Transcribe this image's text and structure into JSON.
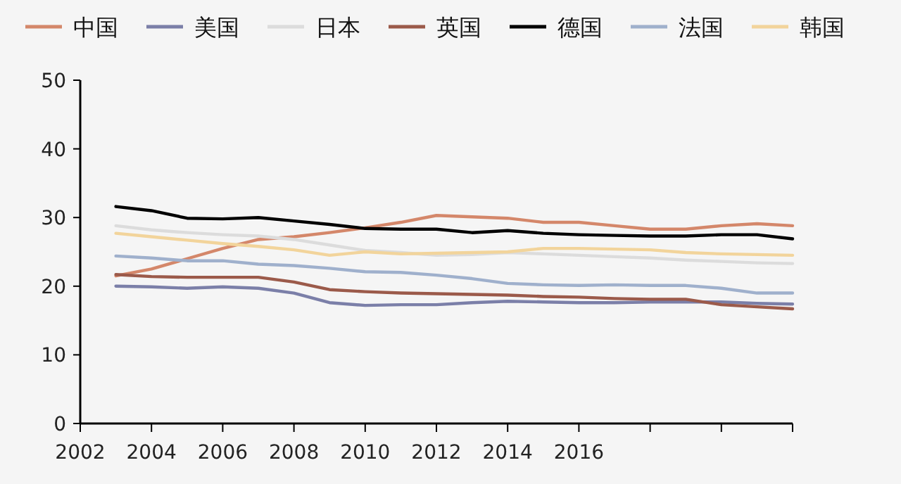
{
  "chart_data": {
    "type": "line",
    "legend": "top",
    "grid": false,
    "marker": "none",
    "line_style": "solid",
    "x": [
      2003,
      2004,
      2005,
      2006,
      2007,
      2008,
      2009,
      2010,
      2011,
      2012,
      2013,
      2014,
      2015,
      2016,
      2017,
      2018,
      2019,
      2020,
      2021,
      2022
    ],
    "xlim": [
      2002,
      2022
    ],
    "xticks": [
      2002,
      2004,
      2006,
      2008,
      2010,
      2012,
      2014,
      2016,
      {
        "value": 2018,
        "label": null
      },
      {
        "value": 2020,
        "label": null
      },
      {
        "value": 2022,
        "label": null
      }
    ],
    "ylim": [
      0,
      50
    ],
    "yticks": [
      0,
      10,
      20,
      30,
      40,
      50
    ],
    "series": [
      {
        "name": "中国",
        "color": "#d4876a",
        "values": [
          21.5,
          22.5,
          24,
          25.5,
          26.8,
          27.2,
          27.8,
          28.5,
          29.3,
          30.3,
          30.1,
          29.9,
          29.3,
          29.3,
          28.8,
          28.3,
          28.3,
          28.8,
          29.1,
          28.8
        ]
      },
      {
        "name": "美国",
        "color": "#7b7fa8",
        "values": [
          20.0,
          19.9,
          19.7,
          19.9,
          19.7,
          19.0,
          17.6,
          17.2,
          17.3,
          17.3,
          17.6,
          17.8,
          17.7,
          17.6,
          17.6,
          17.7,
          17.7,
          17.7,
          17.5,
          17.4
        ]
      },
      {
        "name": "日本",
        "color": "#dcdcdc",
        "values": [
          28.8,
          28.2,
          27.8,
          27.5,
          27.3,
          26.8,
          26.0,
          25.2,
          24.9,
          24.5,
          24.6,
          24.9,
          24.7,
          24.5,
          24.3,
          24.1,
          23.8,
          23.6,
          23.4,
          23.3
        ]
      },
      {
        "name": "英国",
        "color": "#9b5a4a",
        "values": [
          21.7,
          21.4,
          21.3,
          21.3,
          21.3,
          20.6,
          19.5,
          19.2,
          19.0,
          18.9,
          18.8,
          18.7,
          18.5,
          18.4,
          18.2,
          18.1,
          18.1,
          17.3,
          17.0,
          16.7
        ]
      },
      {
        "name": "德国",
        "color": "#000000",
        "values": [
          31.6,
          31.0,
          29.9,
          29.8,
          30.0,
          29.5,
          29.0,
          28.4,
          28.3,
          28.3,
          27.8,
          28.1,
          27.7,
          27.5,
          27.4,
          27.3,
          27.3,
          27.5,
          27.5,
          26.9
        ]
      },
      {
        "name": "法国",
        "color": "#9fb0cc",
        "values": [
          24.4,
          24.1,
          23.7,
          23.7,
          23.2,
          23.0,
          22.6,
          22.1,
          22.0,
          21.6,
          21.1,
          20.4,
          20.2,
          20.1,
          20.2,
          20.1,
          20.1,
          19.7,
          19.0,
          19.0
        ]
      },
      {
        "name": "韩国",
        "color": "#f2d49b",
        "values": [
          27.7,
          27.2,
          26.7,
          26.2,
          25.8,
          25.3,
          24.5,
          25.0,
          24.7,
          24.8,
          24.9,
          25.0,
          25.5,
          25.5,
          25.4,
          25.3,
          24.9,
          24.7,
          24.6,
          24.5
        ]
      }
    ]
  }
}
